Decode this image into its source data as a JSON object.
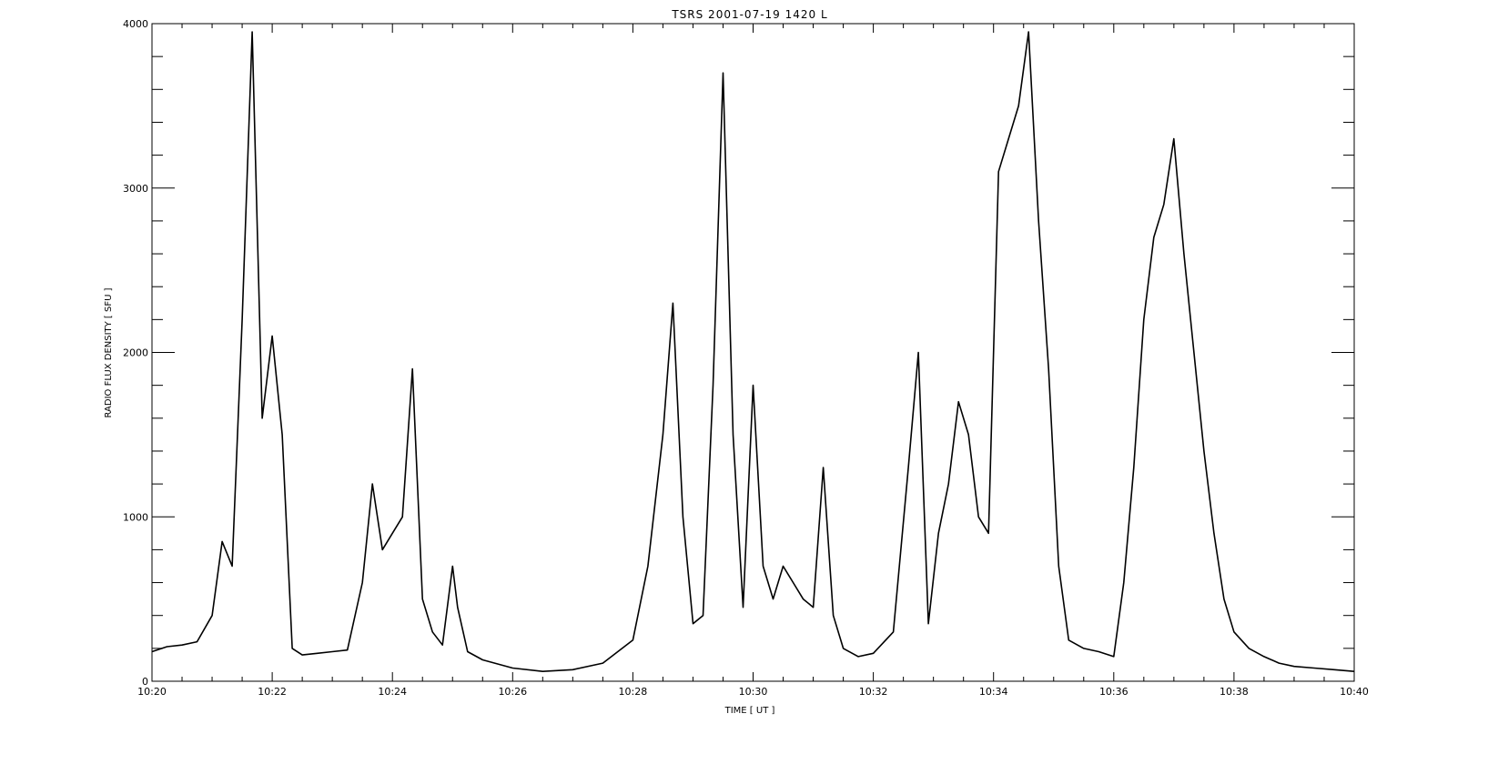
{
  "chart_data": {
    "type": "line",
    "title": "TSRS  2001-07-19  1420  L",
    "xlabel": "TIME [ UT ]",
    "ylabel": "RADIO FLUX DENSITY [ SFU ]",
    "xlim": [
      "10:20",
      "10:40"
    ],
    "ylim": [
      0,
      4000
    ],
    "x_ticks": [
      "10:20",
      "10:22",
      "10:24",
      "10:26",
      "10:28",
      "10:30",
      "10:32",
      "10:34",
      "10:36",
      "10:38",
      "10:40"
    ],
    "y_ticks": [
      "0",
      "1000",
      "2000",
      "3000",
      "4000"
    ],
    "grid": false,
    "series": [
      {
        "x": [
          "10:20:00",
          "10:20:15",
          "10:20:30",
          "10:20:45",
          "10:21:00",
          "10:21:10",
          "10:21:20",
          "10:21:30",
          "10:21:40",
          "10:21:50",
          "10:22:00",
          "10:22:10",
          "10:22:20",
          "10:22:30",
          "10:22:45",
          "10:23:00",
          "10:23:15",
          "10:23:30",
          "10:23:40",
          "10:23:50",
          "10:24:00",
          "10:24:10",
          "10:24:20",
          "10:24:30",
          "10:24:40",
          "10:24:50",
          "10:25:00",
          "10:25:05",
          "10:25:15",
          "10:25:30",
          "10:26:00",
          "10:26:30",
          "10:27:00",
          "10:27:30",
          "10:28:00",
          "10:28:15",
          "10:28:30",
          "10:28:40",
          "10:28:50",
          "10:29:00",
          "10:29:10",
          "10:29:20",
          "10:29:30",
          "10:29:40",
          "10:29:50",
          "10:30:00",
          "10:30:10",
          "10:30:20",
          "10:30:30",
          "10:30:40",
          "10:30:50",
          "10:31:00",
          "10:31:10",
          "10:31:20",
          "10:31:30",
          "10:31:45",
          "10:32:00",
          "10:32:20",
          "10:32:35",
          "10:32:45",
          "10:32:55",
          "10:33:05",
          "10:33:15",
          "10:33:25",
          "10:33:35",
          "10:33:45",
          "10:33:55",
          "10:34:05",
          "10:34:15",
          "10:34:25",
          "10:34:35",
          "10:34:45",
          "10:34:55",
          "10:35:05",
          "10:35:15",
          "10:35:30",
          "10:35:45",
          "10:36:00",
          "10:36:10",
          "10:36:20",
          "10:36:30",
          "10:36:40",
          "10:36:50",
          "10:37:00",
          "10:37:10",
          "10:37:20",
          "10:37:30",
          "10:37:40",
          "10:37:50",
          "10:38:00",
          "10:38:15",
          "10:38:30",
          "10:38:45",
          "10:39:00",
          "10:39:20",
          "10:39:40",
          "10:40:00"
        ],
        "y": [
          180,
          210,
          220,
          240,
          400,
          850,
          700,
          2200,
          3950,
          1600,
          2100,
          1500,
          200,
          160,
          170,
          180,
          190,
          600,
          1200,
          800,
          900,
          1000,
          1900,
          500,
          300,
          220,
          700,
          450,
          180,
          130,
          80,
          60,
          70,
          110,
          250,
          700,
          1500,
          2300,
          1000,
          350,
          400,
          1800,
          3700,
          1500,
          450,
          1800,
          700,
          500,
          700,
          600,
          500,
          450,
          1300,
          400,
          200,
          150,
          170,
          300,
          1300,
          2000,
          350,
          900,
          1200,
          1700,
          1500,
          1000,
          900,
          3100,
          3300,
          3500,
          3950,
          2800,
          1900,
          700,
          250,
          200,
          180,
          150,
          600,
          1300,
          2200,
          2700,
          2900,
          3300,
          2600,
          2000,
          1400,
          900,
          500,
          300,
          200,
          150,
          110,
          90,
          80,
          70,
          60
        ]
      }
    ]
  }
}
